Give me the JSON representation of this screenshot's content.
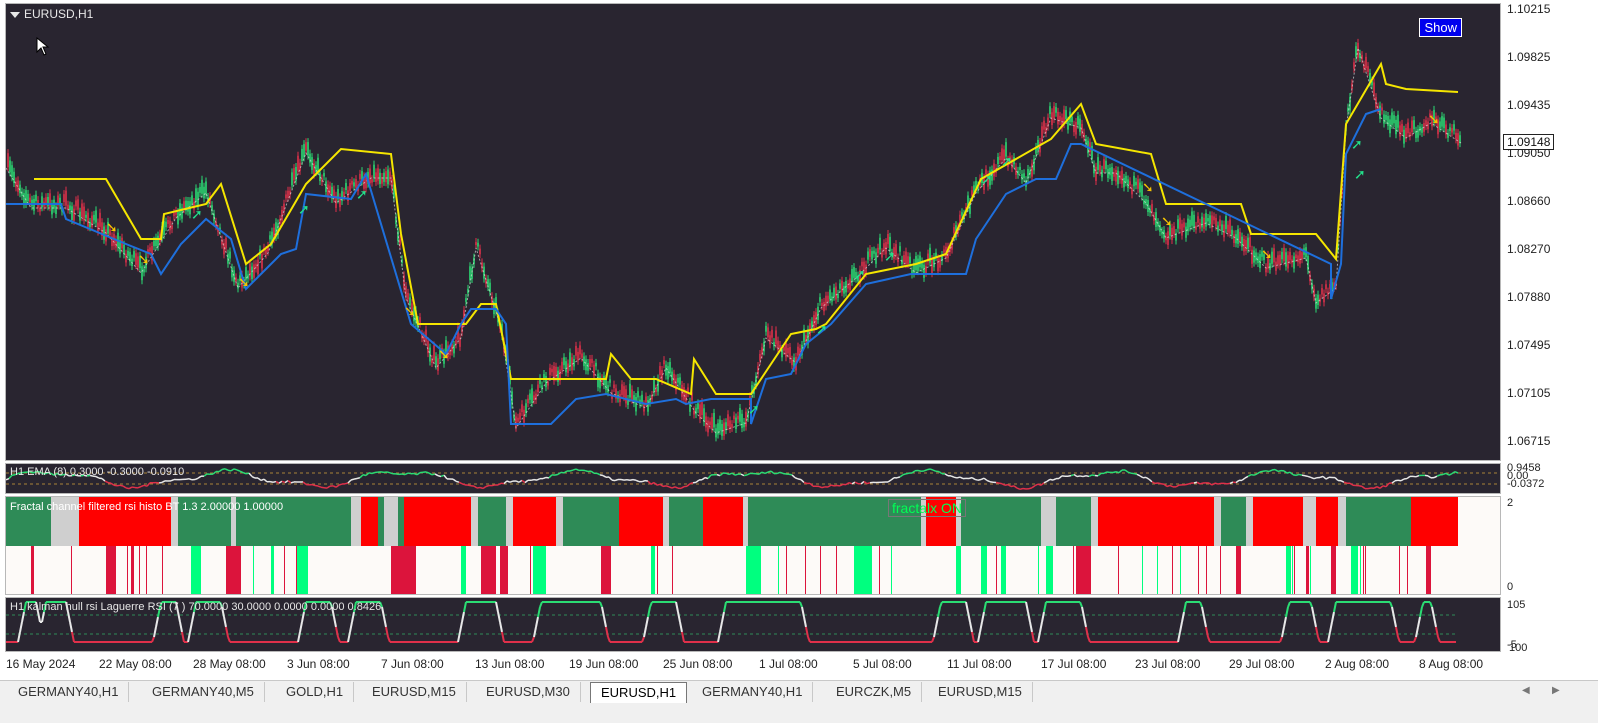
{
  "chart": {
    "symbol": "EURUSD,H1",
    "show_button": "Show",
    "current_price": "1.09148",
    "price_labels": [
      "1.10215",
      "1.09825",
      "1.09435",
      "1.09050",
      "1.08660",
      "1.08270",
      "1.07880",
      "1.07495",
      "1.07105",
      "1.06715"
    ],
    "time_labels": [
      "16 May 2024",
      "22 May 08:00",
      "28 May 08:00",
      "3 Jun 08:00",
      "7 Jun 08:00",
      "13 Jun 08:00",
      "19 Jun 08:00",
      "25 Jun 08:00",
      "1 Jul 08:00",
      "5 Jul 08:00",
      "11 Jul 08:00",
      "17 Jul 08:00",
      "23 Jul 08:00",
      "29 Jul 08:00",
      "2 Aug 08:00",
      "8 Aug 08:00"
    ]
  },
  "indicators": {
    "ema": {
      "label": "H1 EMA (8) 0.3000 -0.3000 -0.0910",
      "scale": [
        "0.9458",
        "0.00",
        "-0.0372"
      ]
    },
    "fractal": {
      "label": "Fractal channel filtered rsi histo BT 1.3 2.00000 1.00000",
      "status": "fractalx ON",
      "scale": [
        "2",
        "0"
      ]
    },
    "laguerre": {
      "label": "H1 kalman hull rsi  Laguerre RSI (7 ) 70.0000 30.0000 0.0000 0.0000 0.8426",
      "scale": [
        "105",
        "-5",
        "100"
      ]
    }
  },
  "tabs": [
    "GERMANY40,H1",
    "GERMANY40,M5",
    "GOLD,H1",
    "EURUSD,M15",
    "EURUSD,M30",
    "EURUSD,H1",
    "GERMANY40,H1",
    "EURCZK,M5",
    "EURUSD,M15"
  ],
  "active_tab": "EURUSD,H1",
  "colors": {
    "background": "#292530",
    "upper_band": "#f5e600",
    "lower_band": "#1e6fdc",
    "bull": "#2bdc73",
    "bear": "#e0304a",
    "buy_arrow": "#22e08a",
    "sell_arrow": "#f5c400",
    "histo_green": "#2e8b57",
    "histo_red": "#ff0000",
    "histo_grey": "#cfcfcf"
  }
}
